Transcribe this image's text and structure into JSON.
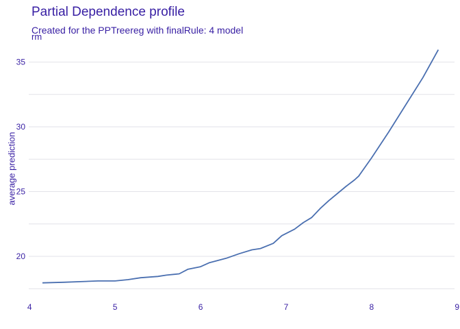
{
  "chart_data": {
    "type": "line",
    "title": "Partial Dependence profile",
    "subtitle": "Created for the PPTreereg with finalRule:  4 model",
    "facet_label": "rm",
    "xlabel": "",
    "ylabel": "average prediction",
    "xlim": [
      3.99,
      8.97
    ],
    "ylim": [
      17.3,
      36.3
    ],
    "x_ticks": [
      4,
      5,
      6,
      7,
      8,
      9
    ],
    "y_ticks": [
      20,
      25,
      30,
      35
    ],
    "grid": "horizontal",
    "legend": "none",
    "line_color": "#4a6fb0",
    "series": [
      {
        "x": [
          4.15,
          4.4,
          4.8,
          5.0,
          5.15,
          5.3,
          5.5,
          5.6,
          5.75,
          5.85,
          6.0,
          6.1,
          6.3,
          6.45,
          6.6,
          6.7,
          6.85,
          6.95,
          7.1,
          7.2,
          7.3,
          7.4,
          7.5,
          7.7,
          7.8,
          7.85,
          8.0,
          8.2,
          8.4,
          8.6,
          8.78
        ],
        "values": [
          17.95,
          18.0,
          18.1,
          18.1,
          18.2,
          18.35,
          18.45,
          18.55,
          18.65,
          19.0,
          19.2,
          19.5,
          19.85,
          20.2,
          20.5,
          20.6,
          21.0,
          21.6,
          22.1,
          22.6,
          23.0,
          23.7,
          24.3,
          25.4,
          25.9,
          26.2,
          27.6,
          29.6,
          31.7,
          33.8,
          35.95
        ]
      }
    ]
  }
}
